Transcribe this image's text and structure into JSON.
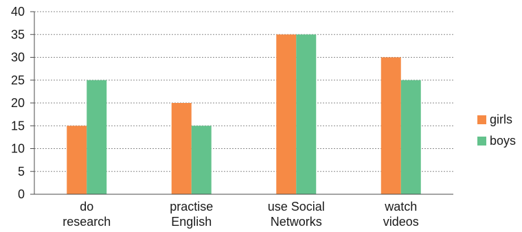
{
  "chart_data": {
    "type": "bar",
    "categories": [
      [
        "do",
        "research"
      ],
      [
        "practise",
        "English"
      ],
      [
        "use Social",
        "Networks"
      ],
      [
        "watch",
        "videos"
      ]
    ],
    "series": [
      {
        "name": "girls",
        "values": [
          15,
          20,
          35,
          30
        ],
        "color": "#f68a45"
      },
      {
        "name": "boys",
        "values": [
          25,
          15,
          35,
          25
        ],
        "color": "#63c28c"
      }
    ],
    "ylim": [
      0,
      40
    ],
    "yticks": [
      "0",
      "5",
      "10",
      "15",
      "20",
      "25",
      "30",
      "35",
      "40"
    ],
    "grid": true,
    "legend_position": "right"
  }
}
